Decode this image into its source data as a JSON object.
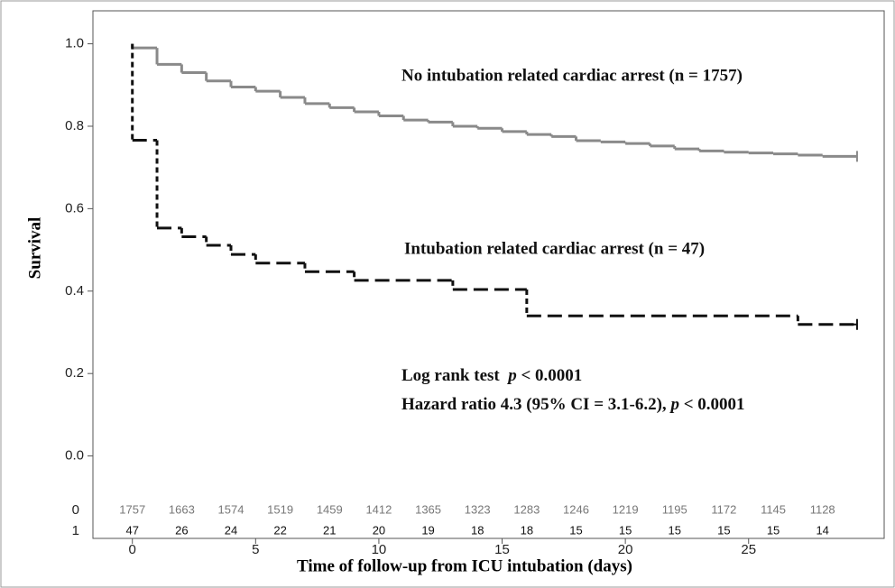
{
  "chart_data": {
    "type": "step",
    "xlabel": "Time of follow-up from ICU intubation (days)",
    "ylabel": "Survival",
    "xlim": [
      -1.6,
      30.5
    ],
    "ylim": [
      -0.2,
      1.08
    ],
    "xticks": [
      0,
      5,
      10,
      15,
      20,
      25
    ],
    "yticks": [
      {
        "value": 0,
        "label": "0.0"
      },
      0.2,
      0.4,
      0.6,
      0.8,
      {
        "value": 1,
        "label": "1.0"
      }
    ],
    "series": [
      {
        "name": "No intubation related cardiac arrest (n = 1757)",
        "color": "#8a8a8a",
        "dash": false,
        "x": [
          0,
          0,
          1,
          2,
          3,
          4,
          5,
          6,
          7,
          8,
          9,
          10,
          11,
          12,
          13,
          14,
          15,
          16,
          17,
          18,
          19,
          20,
          21,
          22,
          23,
          24,
          25,
          26,
          27,
          28,
          29.4
        ],
        "values": [
          1.0,
          0.99,
          0.95,
          0.93,
          0.91,
          0.895,
          0.885,
          0.87,
          0.855,
          0.845,
          0.835,
          0.825,
          0.815,
          0.81,
          0.8,
          0.795,
          0.787,
          0.78,
          0.775,
          0.765,
          0.762,
          0.758,
          0.752,
          0.745,
          0.74,
          0.737,
          0.735,
          0.733,
          0.73,
          0.727,
          0.727
        ]
      },
      {
        "name": "Intubation related cardiac arrest (n = 47)",
        "color": "#111111",
        "dash": true,
        "x": [
          0,
          0,
          1,
          2,
          3,
          4,
          5,
          7,
          9,
          13,
          16,
          27,
          29.4
        ],
        "values": [
          1.0,
          0.766,
          0.553,
          0.532,
          0.511,
          0.489,
          0.468,
          0.447,
          0.426,
          0.404,
          0.34,
          0.319,
          0.319
        ]
      }
    ],
    "annotations": [
      [
        "Log rank test  ",
        "p",
        " < 0.0001"
      ],
      [
        "Hazard ratio 4.3 (95% CI = 3.1-6.2), ",
        "p",
        " < 0.0001"
      ]
    ],
    "risk_table": {
      "x": [
        0,
        2,
        4,
        6,
        8,
        10,
        12,
        14,
        16,
        18,
        20,
        22,
        24,
        26,
        28
      ],
      "rows": [
        {
          "label": "0",
          "color": "#777777",
          "counts": [
            "1757",
            "1663",
            "1574",
            "1519",
            "1459",
            "1412",
            "1365",
            "1323",
            "1283",
            "1246",
            "1219",
            "1195",
            "1172",
            "1145",
            "1128"
          ]
        },
        {
          "label": "1",
          "color": "#111111",
          "counts": [
            "47",
            "26",
            "24",
            "22",
            "21",
            "20",
            "19",
            "18",
            "18",
            "15",
            "15",
            "15",
            "15",
            "15",
            "14"
          ]
        }
      ]
    }
  }
}
